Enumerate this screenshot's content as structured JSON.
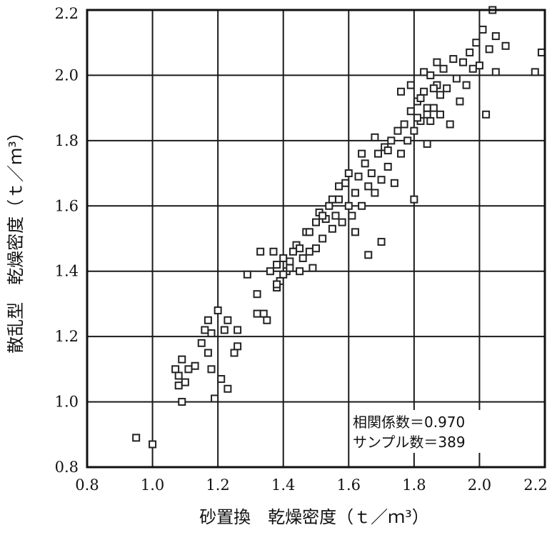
{
  "chart_data": {
    "type": "scatter",
    "xlabel": "砂置換　乾燥密度（ｔ／ｍ³）",
    "ylabel": "散乱型　乾燥密度（ｔ／ｍ³）",
    "xlim": [
      0.8,
      2.2
    ],
    "ylim": [
      0.8,
      2.2
    ],
    "x_ticks": [
      "0.8",
      "1.0",
      "1.2",
      "1.4",
      "1.6",
      "1.8",
      "2.0",
      "2.2"
    ],
    "y_ticks": [
      "0.8",
      "1.0",
      "1.2",
      "1.4",
      "1.6",
      "1.8",
      "2.0",
      "2.2"
    ],
    "grid": true,
    "annotations": [
      "相関係数＝0.970",
      "サンプル数＝389"
    ],
    "points": [
      [
        0.95,
        0.89
      ],
      [
        1.0,
        0.87
      ],
      [
        1.07,
        1.1
      ],
      [
        1.08,
        1.05
      ],
      [
        1.08,
        1.08
      ],
      [
        1.09,
        1.0
      ],
      [
        1.09,
        1.13
      ],
      [
        1.1,
        1.06
      ],
      [
        1.11,
        1.1
      ],
      [
        1.13,
        1.11
      ],
      [
        1.15,
        1.18
      ],
      [
        1.16,
        1.22
      ],
      [
        1.17,
        1.15
      ],
      [
        1.17,
        1.25
      ],
      [
        1.18,
        1.1
      ],
      [
        1.18,
        1.21
      ],
      [
        1.19,
        1.01
      ],
      [
        1.2,
        1.28
      ],
      [
        1.21,
        1.07
      ],
      [
        1.22,
        1.22
      ],
      [
        1.23,
        1.04
      ],
      [
        1.23,
        1.25
      ],
      [
        1.25,
        1.15
      ],
      [
        1.26,
        1.17
      ],
      [
        1.26,
        1.22
      ],
      [
        1.29,
        1.39
      ],
      [
        1.32,
        1.33
      ],
      [
        1.32,
        1.27
      ],
      [
        1.33,
        1.46
      ],
      [
        1.34,
        1.27
      ],
      [
        1.35,
        1.25
      ],
      [
        1.36,
        1.4
      ],
      [
        1.37,
        1.46
      ],
      [
        1.38,
        1.35
      ],
      [
        1.38,
        1.42
      ],
      [
        1.39,
        1.37
      ],
      [
        1.4,
        1.44
      ],
      [
        1.41,
        1.4
      ],
      [
        1.42,
        1.43
      ],
      [
        1.43,
        1.46
      ],
      [
        1.44,
        1.48
      ],
      [
        1.45,
        1.4
      ],
      [
        1.46,
        1.44
      ],
      [
        1.47,
        1.52
      ],
      [
        1.48,
        1.46
      ],
      [
        1.49,
        1.41
      ],
      [
        1.5,
        1.55
      ],
      [
        1.5,
        1.47
      ],
      [
        1.51,
        1.58
      ],
      [
        1.52,
        1.5
      ],
      [
        1.53,
        1.56
      ],
      [
        1.54,
        1.6
      ],
      [
        1.55,
        1.53
      ],
      [
        1.56,
        1.57
      ],
      [
        1.57,
        1.62
      ],
      [
        1.58,
        1.55
      ],
      [
        1.59,
        1.67
      ],
      [
        1.6,
        1.6
      ],
      [
        1.61,
        1.57
      ],
      [
        1.62,
        1.64
      ],
      [
        1.62,
        1.52
      ],
      [
        1.63,
        1.69
      ],
      [
        1.64,
        1.6
      ],
      [
        1.65,
        1.73
      ],
      [
        1.66,
        1.66
      ],
      [
        1.66,
        1.45
      ],
      [
        1.67,
        1.7
      ],
      [
        1.68,
        1.64
      ],
      [
        1.69,
        1.76
      ],
      [
        1.7,
        1.68
      ],
      [
        1.7,
        1.49
      ],
      [
        1.71,
        1.78
      ],
      [
        1.72,
        1.72
      ],
      [
        1.73,
        1.8
      ],
      [
        1.74,
        1.67
      ],
      [
        1.75,
        1.83
      ],
      [
        1.76,
        1.76
      ],
      [
        1.77,
        1.85
      ],
      [
        1.78,
        1.8
      ],
      [
        1.79,
        1.89
      ],
      [
        1.8,
        1.83
      ],
      [
        1.8,
        1.62
      ],
      [
        1.81,
        1.92
      ],
      [
        1.82,
        1.86
      ],
      [
        1.83,
        1.95
      ],
      [
        1.84,
        1.88
      ],
      [
        1.85,
        2.0
      ],
      [
        1.86,
        1.9
      ],
      [
        1.87,
        1.97
      ],
      [
        1.88,
        1.94
      ],
      [
        1.89,
        2.02
      ],
      [
        1.9,
        1.96
      ],
      [
        1.91,
        1.85
      ],
      [
        1.92,
        2.05
      ],
      [
        1.93,
        1.99
      ],
      [
        1.94,
        1.92
      ],
      [
        1.95,
        2.04
      ],
      [
        1.96,
        1.97
      ],
      [
        1.97,
        2.07
      ],
      [
        1.98,
        2.02
      ],
      [
        1.99,
        2.1
      ],
      [
        2.0,
        2.03
      ],
      [
        2.01,
        2.14
      ],
      [
        2.02,
        1.88
      ],
      [
        2.03,
        2.08
      ],
      [
        2.04,
        2.2
      ],
      [
        2.05,
        2.12
      ],
      [
        2.05,
        2.01
      ],
      [
        2.08,
        2.09
      ],
      [
        2.17,
        2.01
      ],
      [
        2.19,
        2.07
      ],
      [
        1.84,
        1.9
      ],
      [
        1.82,
        1.93
      ],
      [
        1.86,
        1.96
      ],
      [
        1.85,
        1.86
      ],
      [
        1.79,
        1.97
      ],
      [
        1.83,
        2.01
      ],
      [
        1.88,
        1.88
      ],
      [
        1.81,
        1.87
      ],
      [
        1.87,
        2.04
      ],
      [
        1.76,
        1.95
      ],
      [
        1.84,
        1.79
      ],
      [
        1.72,
        1.77
      ],
      [
        1.68,
        1.81
      ],
      [
        1.64,
        1.76
      ],
      [
        1.6,
        1.7
      ],
      [
        1.57,
        1.66
      ],
      [
        1.55,
        1.62
      ],
      [
        1.52,
        1.57
      ],
      [
        1.48,
        1.52
      ],
      [
        1.45,
        1.47
      ],
      [
        1.42,
        1.41
      ],
      [
        1.4,
        1.39
      ],
      [
        1.38,
        1.36
      ]
    ]
  }
}
